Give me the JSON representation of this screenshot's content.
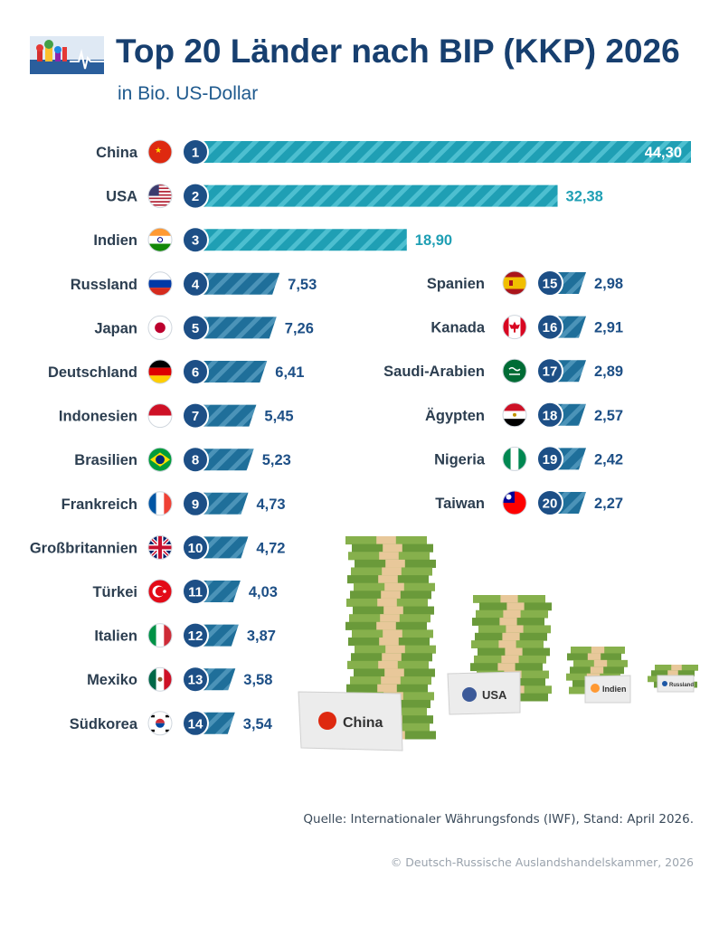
{
  "header": {
    "title": "Top 20 Länder nach BIP (KKP) 2026",
    "subtitle": "in Bio. US-Dollar"
  },
  "chart_data": {
    "type": "bar",
    "orientation": "horizontal",
    "title": "Top 20 Länder nach BIP (KKP) 2026",
    "subtitle": "in Bio. US-Dollar",
    "categories": [
      "China",
      "USA",
      "Indien",
      "Russland",
      "Japan",
      "Deutschland",
      "Indonesien",
      "Brasilien",
      "Frankreich",
      "Großbritannien",
      "Türkei",
      "Italien",
      "Mexiko",
      "Südkorea",
      "Spanien",
      "Kanada",
      "Saudi-Arabien",
      "Ägypten",
      "Nigeria",
      "Taiwan"
    ],
    "ranks": [
      "1",
      "2",
      "3",
      "4",
      "5",
      "6",
      "7",
      "8",
      "9",
      "10",
      "11",
      "12",
      "13",
      "14",
      "15",
      "16",
      "17",
      "18",
      "19",
      "20"
    ],
    "values": [
      44.3,
      32.38,
      18.9,
      7.53,
      7.26,
      6.41,
      5.45,
      5.23,
      4.73,
      4.72,
      4.03,
      3.87,
      3.58,
      3.54,
      2.98,
      2.91,
      2.89,
      2.57,
      2.42,
      2.27
    ],
    "value_labels": [
      "44,30",
      "32,38",
      "18,90",
      "7,53",
      "7,26",
      "6,41",
      "5,45",
      "5,23",
      "4,73",
      "4,72",
      "4,03",
      "3,87",
      "3,58",
      "3,54",
      "2,98",
      "2,91",
      "2,89",
      "2,57",
      "2,42",
      "2,27"
    ],
    "flag_icons": [
      "flag-china-icon",
      "flag-usa-icon",
      "flag-india-icon",
      "flag-russia-icon",
      "flag-japan-icon",
      "flag-germany-icon",
      "flag-indonesia-icon",
      "flag-brazil-icon",
      "flag-france-icon",
      "flag-uk-icon",
      "flag-turkey-icon",
      "flag-italy-icon",
      "flag-mexico-icon",
      "flag-south-korea-icon",
      "flag-spain-icon",
      "flag-canada-icon",
      "flag-saudi-arabia-icon",
      "flag-egypt-icon",
      "flag-nigeria-icon",
      "flag-taiwan-icon"
    ],
    "colors": {
      "top3_bar": "#1f9fb4",
      "other_bar": "#1f6f9a",
      "badge": "#1d4f86",
      "top3_value": "#1f9fb4",
      "other_value": "#1d4f86",
      "label": "#2c3e50"
    }
  },
  "illustration": {
    "stack_labels": [
      "China",
      "USA",
      "Indien",
      "Russland"
    ],
    "stack_flags": [
      "flag-china-icon",
      "flag-usa-icon",
      "flag-india-icon",
      "flag-russia-icon"
    ]
  },
  "footer": {
    "source": "Quelle: Internationaler Währungsfonds (IWF), Stand: April 2026.",
    "copyright": "© Deutsch-Russische Auslandshandelskammer, 2026"
  }
}
